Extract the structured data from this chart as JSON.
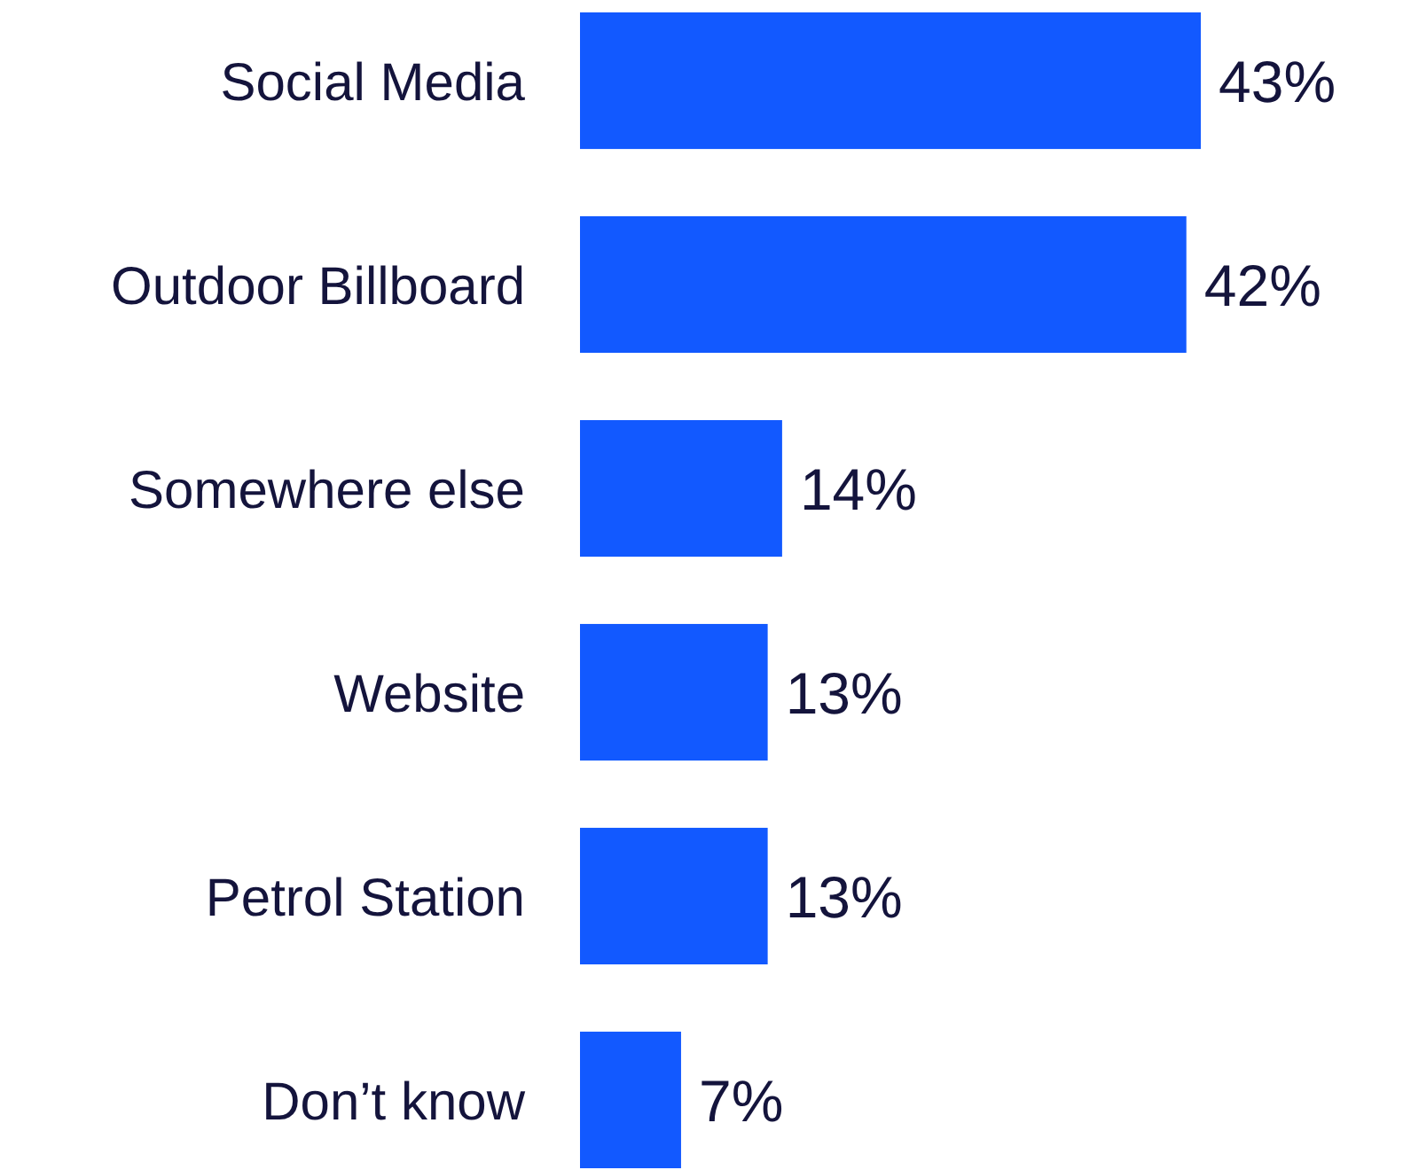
{
  "chart_data": {
    "type": "bar",
    "orientation": "horizontal",
    "categories": [
      "Social Media",
      "Outdoor Billboard",
      "Somewhere else",
      "Website",
      "Petrol Station",
      "Don’t know"
    ],
    "values": [
      43,
      42,
      14,
      13,
      13,
      7
    ],
    "value_labels": [
      "43%",
      "42%",
      "14%",
      "13%",
      "13%",
      "7%"
    ],
    "color": "#1259ff"
  }
}
